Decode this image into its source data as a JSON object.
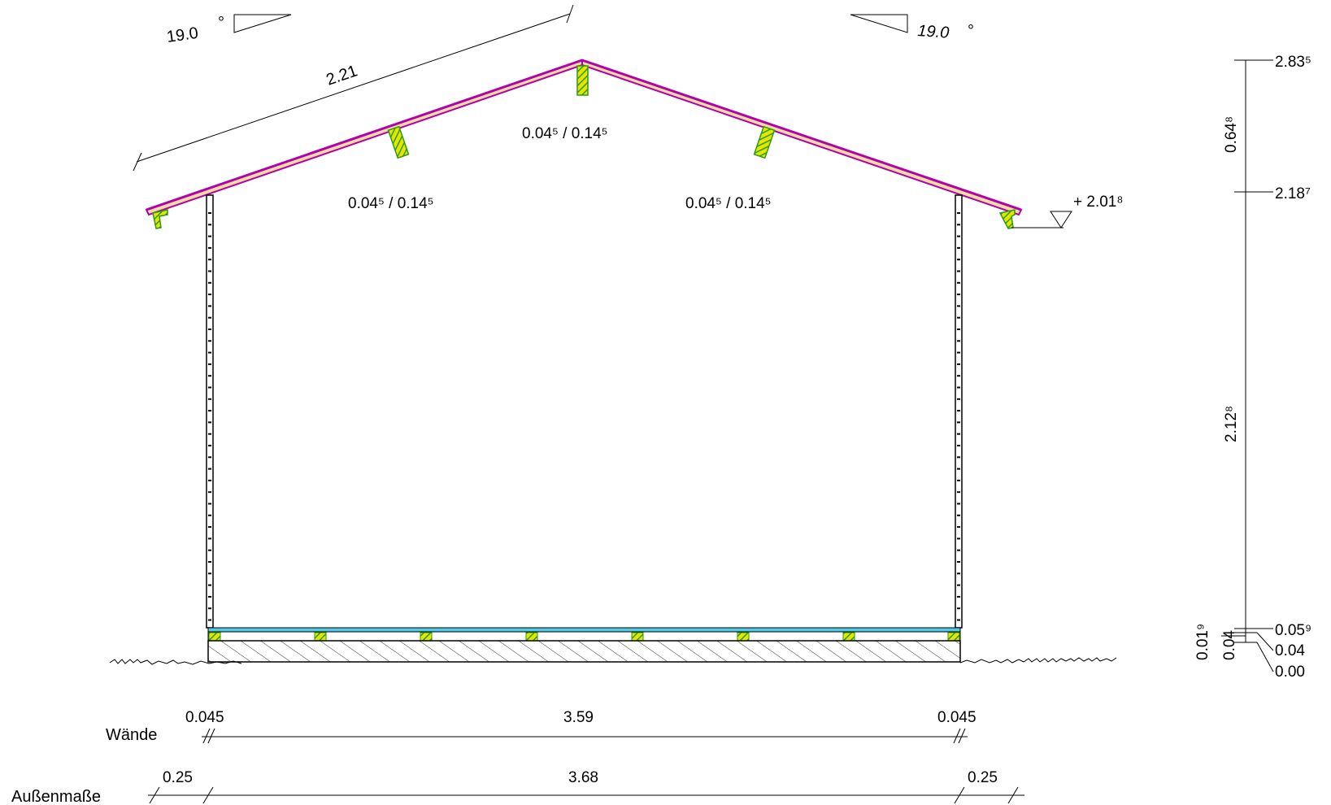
{
  "roof": {
    "slope_left": "19.0",
    "slope_right": "19.0",
    "degree_symbol": "°",
    "rafter_length": "2.21",
    "section_center": "0.04⁵ / 0.14⁵",
    "section_left": "0.04⁵ / 0.14⁵",
    "section_right": "0.04⁵ / 0.14⁵",
    "eave_level": "+ 2.01⁸"
  },
  "height_chain": {
    "top_level": "2.83⁵",
    "wall_top_level": "2.18⁷",
    "floor_top_level": "0.05⁹",
    "slab_top_level": "0.04",
    "ground_level": "0.00",
    "roof_height": "0.64⁸",
    "wall_height": "2.12⁸",
    "floor_thickness": "0.01⁹",
    "slab_thickness": "0.04"
  },
  "dimensions": {
    "walls_label": "Wände",
    "wall_left": "0.045",
    "wall_inner": "3.59",
    "wall_right": "0.045",
    "outer_label": "Außenmaße",
    "overhang_left": "0.25",
    "outer_width": "3.68",
    "overhang_right": "0.25"
  },
  "colors": {
    "roof_magenta": "#b000b0",
    "roof_lining": "#e8c070",
    "timber_green": "#2d9a1a",
    "timber_yellow": "#e5e600",
    "floor_cyan": "#55c8e6",
    "hatch": "#333333"
  }
}
